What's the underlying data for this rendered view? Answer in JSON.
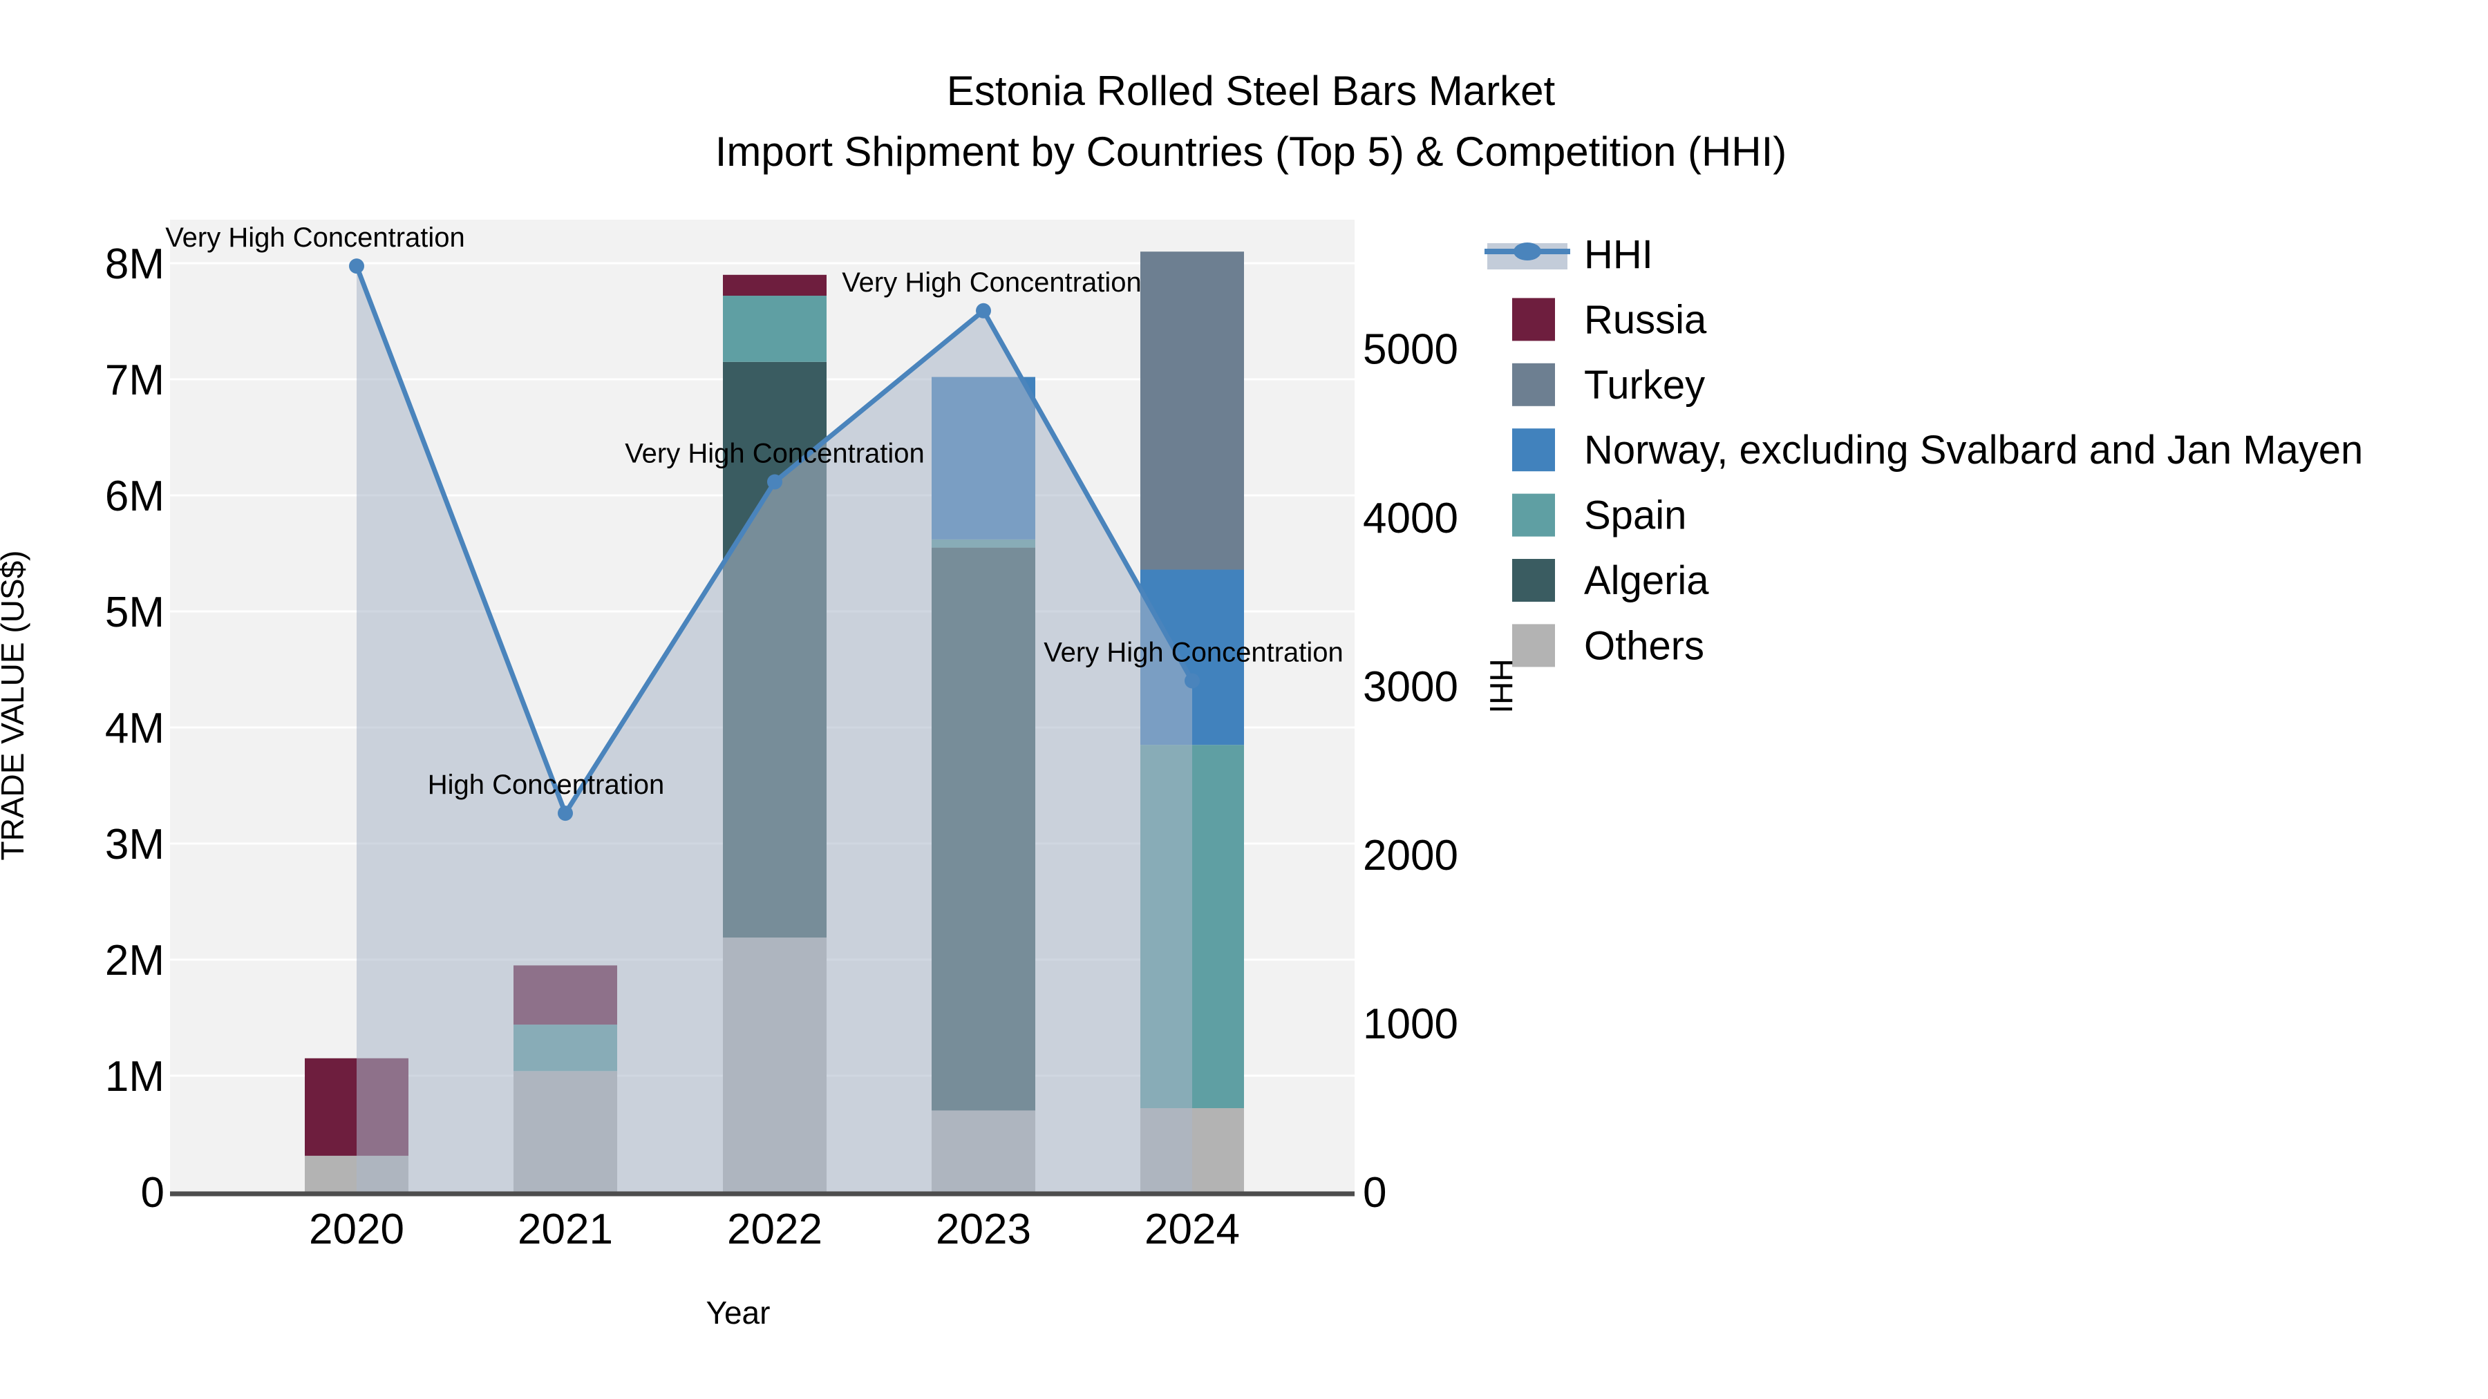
{
  "title": {
    "line1": "Estonia Rolled Steel Bars Market",
    "line2": "Import Shipment by Countries (Top 5) & Competition (HHI)"
  },
  "axes": {
    "x": {
      "title": "Year",
      "ticks": [
        "2020",
        "2021",
        "2022",
        "2023",
        "2024"
      ]
    },
    "y_left": {
      "title": "TRADE VALUE (US$)",
      "ticks": [
        "0",
        "1M",
        "2M",
        "3M",
        "4M",
        "5M",
        "6M",
        "7M",
        "8M"
      ]
    },
    "y_right": {
      "title": "HHI",
      "ticks": [
        "0",
        "1000",
        "2000",
        "3000",
        "4000",
        "5000"
      ]
    }
  },
  "legend": [
    {
      "label": "HHI",
      "type": "line",
      "color": "#4a84bc",
      "band_color": "#a9b7c9"
    },
    {
      "label": "Russia",
      "type": "box",
      "color": "#6e1e3e"
    },
    {
      "label": "Turkey",
      "type": "box",
      "color": "#6d7f91"
    },
    {
      "label": "Norway, excluding Svalbard and Jan Mayen",
      "type": "box",
      "color": "#4182bd"
    },
    {
      "label": "Spain",
      "type": "box",
      "color": "#5f9fa3"
    },
    {
      "label": "Algeria",
      "type": "box",
      "color": "#3a5c61"
    },
    {
      "label": "Others",
      "type": "box",
      "color": "#b3b3b3"
    }
  ],
  "chart_data": {
    "type": "bar",
    "subtype": "stacked-bars-with-dual-axis-line",
    "title": "Estonia Rolled Steel Bars Market — Import Shipment by Countries (Top 5) & Competition (HHI)",
    "categories": [
      "2020",
      "2021",
      "2022",
      "2023",
      "2024"
    ],
    "xlabel": "Year",
    "ylabel_left": "TRADE VALUE (US$)",
    "ylabel_right": "HHI",
    "ylim_left": [
      0,
      8375000
    ],
    "ylim_right": [
      0,
      5765
    ],
    "grid": "horizontal",
    "legend_position": "right",
    "series": [
      {
        "name": "Russia",
        "axis": "left",
        "color": "#6e1e3e",
        "values": [
          840000,
          510000,
          180000,
          0,
          0
        ]
      },
      {
        "name": "Turkey",
        "axis": "left",
        "color": "#6d7f91",
        "values": [
          0,
          0,
          0,
          0,
          2740000
        ]
      },
      {
        "name": "Norway, excluding Svalbard and Jan Mayen",
        "axis": "left",
        "color": "#4182bd",
        "values": [
          0,
          0,
          0,
          1400000,
          1510000
        ]
      },
      {
        "name": "Spain",
        "axis": "left",
        "color": "#5f9fa3",
        "values": [
          0,
          400000,
          570000,
          70000,
          3130000
        ]
      },
      {
        "name": "Algeria",
        "axis": "left",
        "color": "#3a5c61",
        "values": [
          0,
          0,
          4960000,
          4850000,
          0
        ]
      },
      {
        "name": "Others",
        "axis": "left",
        "color": "#b3b3b3",
        "values": [
          310000,
          1040000,
          2190000,
          700000,
          720000
        ]
      }
    ],
    "stack_order_bottom_to_top": [
      "Others",
      "Algeria",
      "Spain",
      "Norway, excluding Svalbard and Jan Mayen",
      "Turkey",
      "Russia"
    ],
    "line_series": {
      "name": "HHI",
      "axis": "right",
      "color": "#4a84bc",
      "area_fill_color": "#a9b7c9",
      "area_fill_opacity": 0.55,
      "values": [
        5490,
        2245,
        4210,
        5225,
        3030
      ]
    },
    "annotations": [
      {
        "category": "2020",
        "text": "Very High Concentration",
        "dx": -60
      },
      {
        "category": "2021",
        "text": "High Concentration",
        "dx": -28
      },
      {
        "category": "2022",
        "text": "Very High Concentration",
        "dx": 0
      },
      {
        "category": "2023",
        "text": "Very High Concentration",
        "dx": 12
      },
      {
        "category": "2024",
        "text": "Very High Concentration",
        "dx": 2
      }
    ]
  },
  "colors": {
    "figure_background": "#ffffff",
    "plot_background": "#f2f2f2",
    "gridline": "#ffffff",
    "axis_line": "#4d4d4d",
    "text": "#000000"
  }
}
